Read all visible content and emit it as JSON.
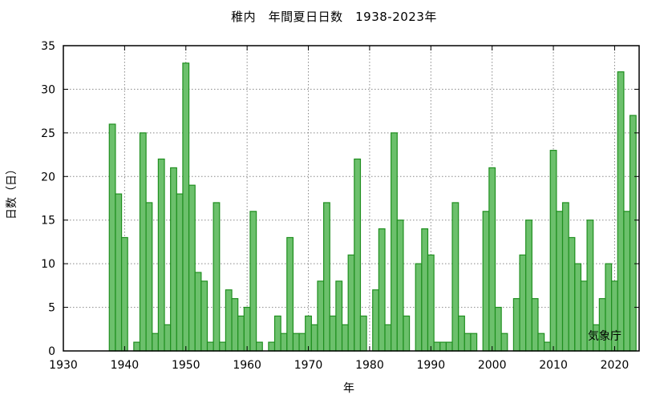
{
  "chart_data": {
    "type": "bar",
    "title": "稚内　年間夏日日数　1938-2023年",
    "xlabel": "年",
    "ylabel": "日数（日）",
    "credit": "気象庁",
    "xlim": [
      1930,
      2024
    ],
    "ylim": [
      0,
      35
    ],
    "xticks": [
      1930,
      1940,
      1950,
      1960,
      1970,
      1980,
      1990,
      2000,
      2010,
      2020
    ],
    "yticks": [
      0,
      5,
      10,
      15,
      20,
      25,
      30,
      35
    ],
    "grid": true,
    "bar_color": "#6cc06c",
    "bar_edge_color": "#1f8f1f",
    "x": [
      1938,
      1939,
      1940,
      1941,
      1942,
      1943,
      1944,
      1945,
      1946,
      1947,
      1948,
      1949,
      1950,
      1951,
      1952,
      1953,
      1954,
      1955,
      1956,
      1957,
      1958,
      1959,
      1960,
      1961,
      1962,
      1963,
      1964,
      1965,
      1966,
      1967,
      1968,
      1969,
      1970,
      1971,
      1972,
      1973,
      1974,
      1975,
      1976,
      1977,
      1978,
      1979,
      1980,
      1981,
      1982,
      1983,
      1984,
      1985,
      1986,
      1987,
      1988,
      1989,
      1990,
      1991,
      1992,
      1993,
      1994,
      1995,
      1996,
      1997,
      1998,
      1999,
      2000,
      2001,
      2002,
      2003,
      2004,
      2005,
      2006,
      2007,
      2008,
      2009,
      2010,
      2011,
      2012,
      2013,
      2014,
      2015,
      2016,
      2017,
      2018,
      2019,
      2020,
      2021,
      2022,
      2023
    ],
    "values": [
      26,
      18,
      13,
      0,
      1,
      25,
      17,
      2,
      22,
      3,
      21,
      18,
      33,
      19,
      9,
      8,
      1,
      17,
      1,
      7,
      6,
      4,
      5,
      16,
      1,
      0,
      1,
      4,
      2,
      13,
      2,
      2,
      4,
      3,
      8,
      17,
      4,
      8,
      3,
      11,
      22,
      4,
      0,
      7,
      14,
      3,
      25,
      15,
      4,
      0,
      10,
      14,
      11,
      1,
      1,
      1,
      17,
      4,
      2,
      2,
      0,
      16,
      21,
      5,
      2,
      0,
      6,
      11,
      15,
      6,
      2,
      1,
      23,
      16,
      17,
      13,
      10,
      8,
      15,
      3,
      6,
      10,
      8,
      32,
      16,
      27
    ]
  }
}
